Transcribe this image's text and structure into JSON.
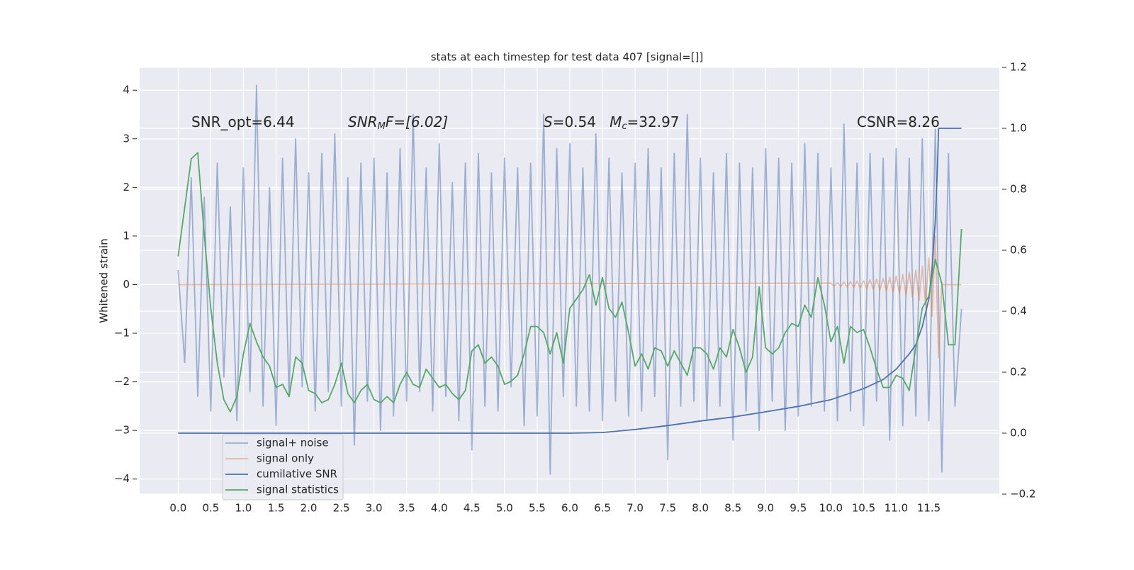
{
  "chart_data": {
    "type": "line",
    "title": "stats at each timestep for test data 407 [signal=[]]",
    "ylabel": "Whitened strain",
    "annotations": [
      [
        "SNR_opt=6.44"
      ],
      [
        "SNR",
        "M",
        "F=[6.02]"
      ],
      [
        "S",
        "=0.54   ",
        "M",
        "c",
        "=32.97"
      ],
      [
        "CSNR=8.26"
      ]
    ],
    "x": [
      0,
      0.1,
      0.2,
      0.3,
      0.4,
      0.5,
      0.6,
      0.7,
      0.8,
      0.9,
      1.0,
      1.1,
      1.2,
      1.3,
      1.4,
      1.5,
      1.6,
      1.7,
      1.8,
      1.9,
      2.0,
      2.1,
      2.2,
      2.3,
      2.4,
      2.5,
      2.6,
      2.7,
      2.8,
      2.9,
      3.0,
      3.1,
      3.2,
      3.3,
      3.4,
      3.5,
      3.6,
      3.7,
      3.8,
      3.9,
      4.0,
      4.1,
      4.2,
      4.3,
      4.4,
      4.5,
      4.6,
      4.7,
      4.8,
      4.9,
      5.0,
      5.1,
      5.2,
      5.3,
      5.4,
      5.5,
      5.6,
      5.7,
      5.8,
      5.9,
      6.0,
      6.1,
      6.2,
      6.3,
      6.4,
      6.5,
      6.6,
      6.7,
      6.8,
      6.9,
      7.0,
      7.1,
      7.2,
      7.3,
      7.4,
      7.5,
      7.6,
      7.7,
      7.8,
      7.9,
      8.0,
      8.1,
      8.2,
      8.3,
      8.4,
      8.5,
      8.6,
      8.7,
      8.8,
      8.9,
      9.0,
      9.1,
      9.2,
      9.3,
      9.4,
      9.5,
      9.6,
      9.7,
      9.8,
      9.9,
      10.0,
      10.1,
      10.2,
      10.3,
      10.4,
      10.5,
      10.6,
      10.7,
      10.8,
      10.9,
      11.0,
      11.1,
      11.2,
      11.3,
      11.4,
      11.5,
      11.6,
      11.7,
      11.8,
      11.9,
      12.0
    ],
    "series": [
      {
        "name": "signal+ noise",
        "color": "#4c72b0",
        "opacity": 0.5,
        "values": [
          0.3,
          -1.6,
          2.2,
          -2.3,
          1.8,
          -2.6,
          2.5,
          -1.9,
          1.6,
          -2.8,
          2.4,
          -2.2,
          4.1,
          -2.5,
          2.0,
          -2.9,
          2.6,
          -2.3,
          3.0,
          -2.1,
          2.3,
          -2.6,
          2.7,
          -2.2,
          3.1,
          -2.5,
          2.2,
          -3.3,
          2.5,
          -2.4,
          2.6,
          -3.0,
          2.3,
          -2.7,
          2.8,
          -2.4,
          3.5,
          -2.2,
          2.4,
          -2.6,
          2.9,
          -2.3,
          2.1,
          -2.8,
          2.5,
          -3.4,
          2.7,
          -2.5,
          2.3,
          -2.6,
          2.6,
          -2.1,
          2.4,
          -2.9,
          2.5,
          -2.7,
          3.5,
          -3.9,
          2.8,
          -2.3,
          2.9,
          -2.5,
          2.4,
          -2.6,
          3.1,
          -2.8,
          2.6,
          -2.4,
          2.3,
          -2.7,
          2.5,
          -2.6,
          2.8,
          -2.3,
          2.4,
          -3.6,
          2.7,
          -2.5,
          3.5,
          -2.4,
          2.6,
          -2.8,
          2.3,
          -2.5,
          2.7,
          -3.2,
          2.5,
          -2.6,
          2.4,
          -3.0,
          2.8,
          -2.4,
          2.6,
          -3.0,
          2.5,
          -2.7,
          2.9,
          -2.5,
          2.7,
          -2.6,
          2.4,
          -2.8,
          3.3,
          -2.6,
          2.5,
          -2.9,
          2.7,
          -2.4,
          2.6,
          -3.2,
          2.8,
          -2.9,
          2.6,
          -2.7,
          3.0,
          -2.8,
          3.2,
          -3.85,
          2.7,
          -2.5,
          -0.5
        ]
      },
      {
        "name": "signal only",
        "color": "#dd8452",
        "opacity": 0.5,
        "x": [
          0,
          10.0,
          10.05,
          10.1,
          10.15,
          10.2,
          10.25,
          10.3,
          10.35,
          10.4,
          10.45,
          10.5,
          10.55,
          10.6,
          10.65,
          10.7,
          10.75,
          10.8,
          10.85,
          10.9,
          10.95,
          11.0,
          11.05,
          11.1,
          11.15,
          11.2,
          11.25,
          11.3,
          11.35,
          11.4,
          11.45,
          11.5,
          11.55,
          11.6,
          11.65,
          11.7,
          12.0
        ],
        "values": [
          0,
          0.03,
          -0.03,
          0.04,
          -0.04,
          0.05,
          -0.05,
          0.06,
          -0.06,
          0.07,
          -0.07,
          0.08,
          -0.08,
          0.1,
          -0.1,
          0.11,
          -0.11,
          0.13,
          -0.13,
          0.15,
          -0.15,
          0.18,
          -0.18,
          0.21,
          -0.21,
          0.25,
          -0.26,
          0.3,
          -0.32,
          0.38,
          -0.42,
          0.55,
          -0.65,
          1.0,
          -1.5,
          0,
          0
        ]
      },
      {
        "name": "cumilative SNR",
        "color": "#4c72b0",
        "opacity": 1,
        "axis": "y2",
        "x": [
          0,
          6.0,
          6.5,
          7.0,
          7.5,
          8.0,
          8.5,
          9.0,
          9.5,
          10.0,
          10.5,
          10.8,
          11.0,
          11.2,
          11.3,
          11.4,
          11.5,
          11.55,
          11.6,
          11.63,
          11.65,
          12.0
        ],
        "values": [
          0,
          0,
          0.002,
          0.012,
          0.025,
          0.04,
          0.053,
          0.07,
          0.088,
          0.11,
          0.146,
          0.176,
          0.21,
          0.26,
          0.29,
          0.35,
          0.44,
          0.54,
          0.7,
          0.86,
          1.0,
          1.0
        ]
      },
      {
        "name": "signal statistics",
        "color": "#55a868",
        "opacity": 1,
        "axis": "y2",
        "values": [
          0.58,
          0.74,
          0.9,
          0.92,
          0.65,
          0.41,
          0.23,
          0.11,
          0.07,
          0.12,
          0.26,
          0.36,
          0.3,
          0.25,
          0.22,
          0.15,
          0.16,
          0.12,
          0.25,
          0.23,
          0.14,
          0.13,
          0.1,
          0.11,
          0.16,
          0.23,
          0.13,
          0.1,
          0.14,
          0.16,
          0.11,
          0.1,
          0.12,
          0.1,
          0.16,
          0.2,
          0.16,
          0.15,
          0.21,
          0.18,
          0.15,
          0.16,
          0.13,
          0.11,
          0.14,
          0.27,
          0.29,
          0.23,
          0.25,
          0.22,
          0.16,
          0.17,
          0.19,
          0.26,
          0.35,
          0.35,
          0.33,
          0.26,
          0.33,
          0.23,
          0.41,
          0.44,
          0.47,
          0.52,
          0.42,
          0.51,
          0.41,
          0.38,
          0.43,
          0.33,
          0.22,
          0.26,
          0.21,
          0.28,
          0.27,
          0.22,
          0.27,
          0.23,
          0.19,
          0.28,
          0.28,
          0.26,
          0.21,
          0.28,
          0.25,
          0.34,
          0.28,
          0.2,
          0.25,
          0.48,
          0.28,
          0.26,
          0.28,
          0.33,
          0.36,
          0.35,
          0.42,
          0.38,
          0.51,
          0.42,
          0.3,
          0.35,
          0.23,
          0.35,
          0.33,
          0.34,
          0.28,
          0.21,
          0.15,
          0.15,
          0.19,
          0.18,
          0.14,
          0.28,
          0.41,
          0.45,
          0.57,
          0.49,
          0.29,
          0.29,
          0.67
        ]
      }
    ],
    "xlim": [
      -0.59,
      12.58
    ],
    "xticks": [
      {
        "value": 0,
        "label": "0.0"
      },
      0.5,
      {
        "value": 1,
        "label": "1.0"
      },
      1.5,
      {
        "value": 2,
        "label": "2.0"
      },
      2.5,
      {
        "value": 3,
        "label": "3.0"
      },
      3.5,
      {
        "value": 4,
        "label": "4.0"
      },
      4.5,
      {
        "value": 5,
        "label": "5.0"
      },
      5.5,
      {
        "value": 6,
        "label": "6.0"
      },
      6.5,
      {
        "value": 7,
        "label": "7.0"
      },
      7.5,
      {
        "value": 8,
        "label": "8.0"
      },
      8.5,
      {
        "value": 9,
        "label": "9.0"
      },
      9.5,
      {
        "value": 10,
        "label": "10.0"
      },
      10.5,
      {
        "value": 11,
        "label": "11.0"
      },
      11.5
    ],
    "ylim": [
      -4.31,
      4.47
    ],
    "yticks": [
      {
        "value": -4,
        "label": "−4"
      },
      {
        "value": -3,
        "label": "−3"
      },
      {
        "value": -2,
        "label": "−2"
      },
      {
        "value": -1,
        "label": "−1"
      },
      0,
      1,
      2,
      3,
      4
    ],
    "y2lim": [
      -0.2,
      1.2
    ],
    "y2ticks": [
      {
        "value": -0.2,
        "label": "−0.2"
      },
      {
        "value": 0,
        "label": "0.0"
      },
      0.2,
      0.4,
      0.6,
      0.8,
      {
        "value": 1,
        "label": "1.0"
      },
      1.2
    ],
    "grid": true,
    "legend": "lower left"
  }
}
